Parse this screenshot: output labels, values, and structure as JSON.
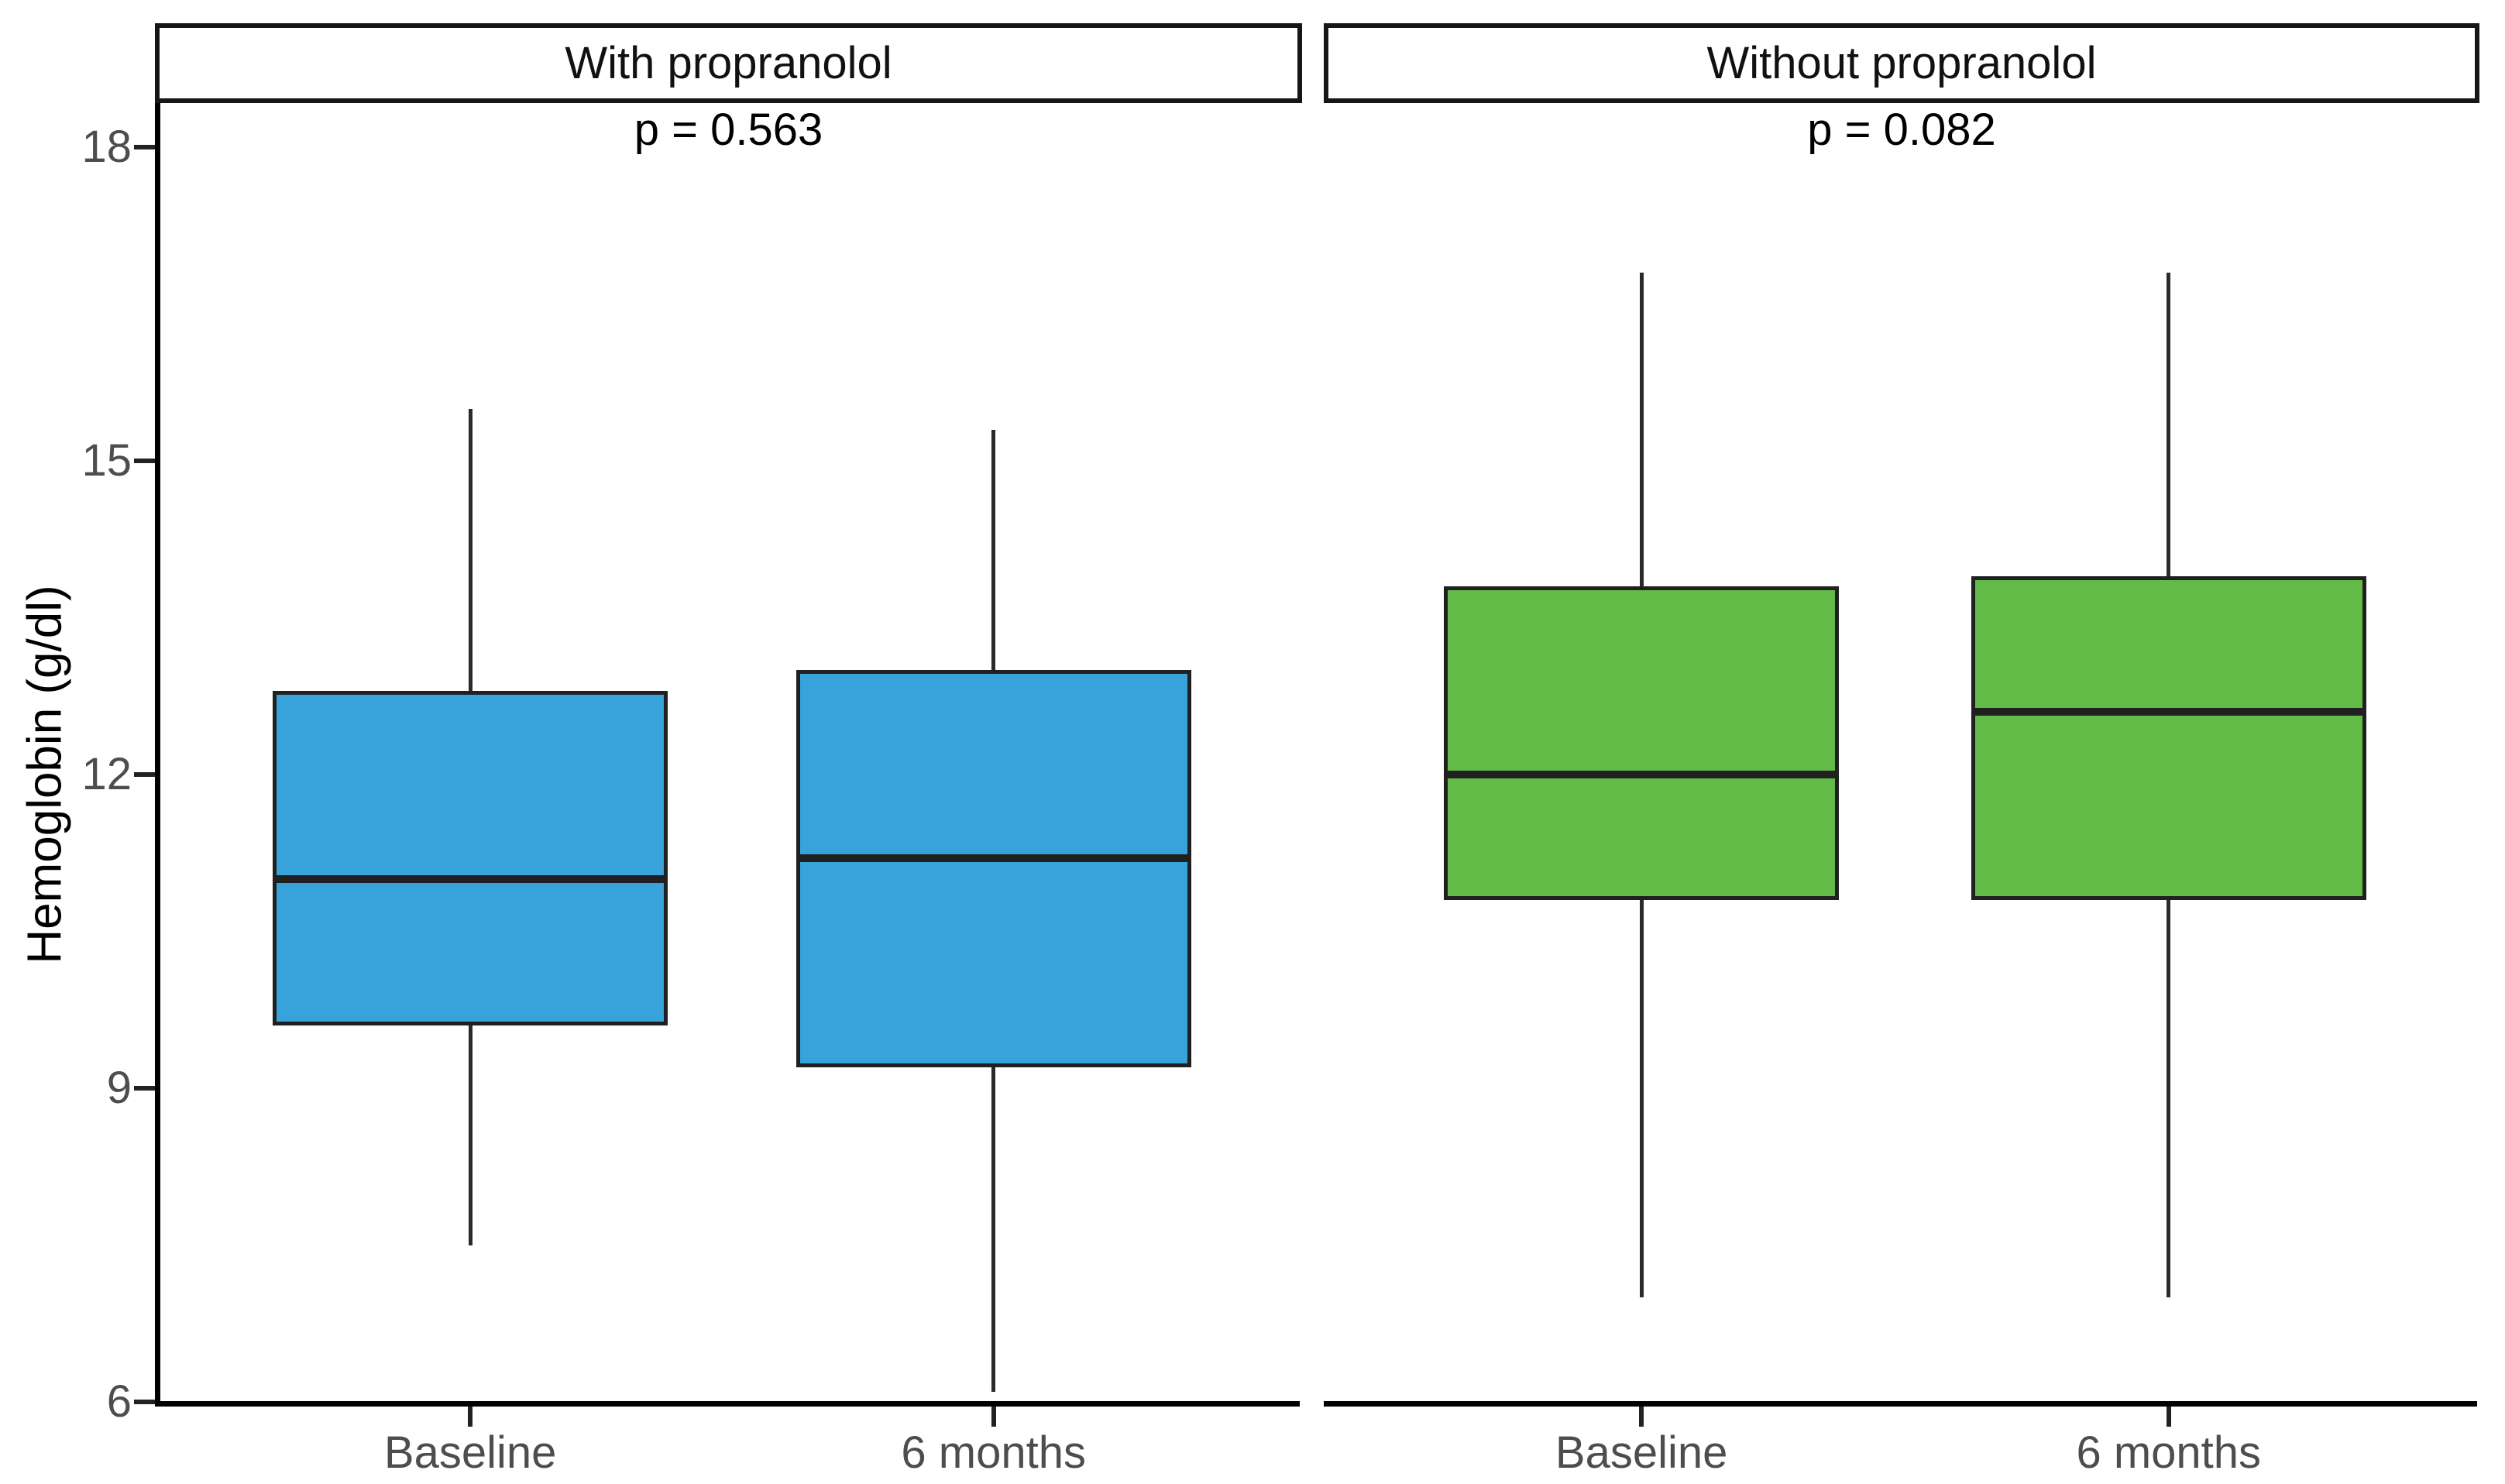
{
  "chart_data": {
    "type": "boxplot",
    "facet_layout": "two panels side by side, shared y axis",
    "ylabel": "Hemoglobin (g/dl)",
    "ylim": [
      6,
      18.4
    ],
    "yticks": [
      18,
      15,
      12,
      9,
      6
    ],
    "categories": [
      "Baseline",
      "6 months"
    ],
    "grid": "off",
    "legend": "none",
    "facets": [
      {
        "title": "With propranolol",
        "p_label": "p = 0.563",
        "fill_color": "#37A3DA",
        "boxes": [
          {
            "category": "Baseline",
            "min": 7.5,
            "q1": 9.6,
            "median": 11.0,
            "q3": 12.8,
            "max": 15.5
          },
          {
            "category": "6 months",
            "min": 6.1,
            "q1": 9.2,
            "median": 11.2,
            "q3": 13.0,
            "max": 15.3
          }
        ]
      },
      {
        "title": "Without propranolol",
        "p_label": "p = 0.082",
        "fill_color": "#61BB46",
        "boxes": [
          {
            "category": "Baseline",
            "min": 7.0,
            "q1": 10.8,
            "median": 12.0,
            "q3": 13.8,
            "max": 16.8
          },
          {
            "category": "6 months",
            "min": 7.0,
            "q1": 10.8,
            "median": 12.6,
            "q3": 13.9,
            "max": 16.8
          }
        ]
      }
    ],
    "styles": {
      "box_border_color": "#202020",
      "median_color": "#202020",
      "whisker_color": "#2a2a2a",
      "axis_color": "#000000",
      "tick_label_color": "#4d4d4d",
      "strip_background": "#ffffff",
      "strip_border_color": "#161616",
      "background": "#ffffff"
    }
  }
}
